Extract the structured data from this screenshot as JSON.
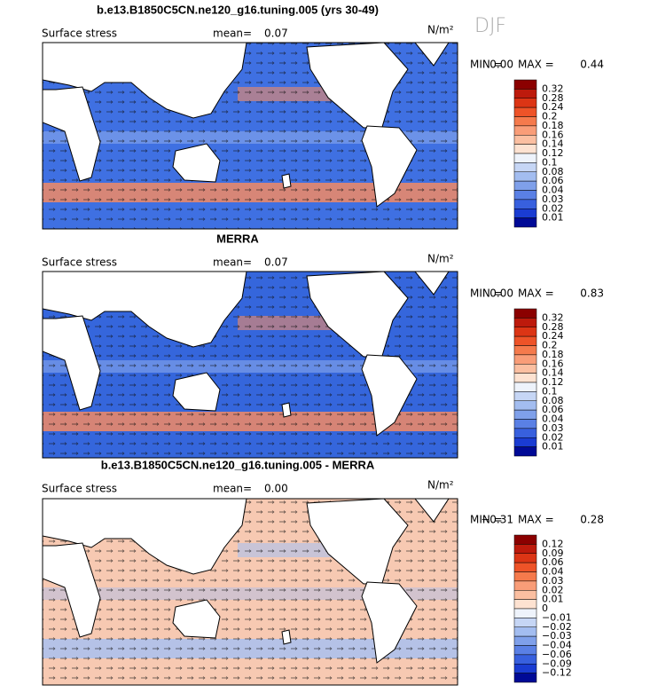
{
  "figure": {
    "season": "DJF",
    "panels": [
      {
        "title": "b.e13.B1850C5CN.ne120_g16.tuning.005 (yrs 30-49)",
        "variable": "Surface stress",
        "mean_label": "mean=",
        "mean": "0.07",
        "units": "N/m²",
        "min_label": "MIN =",
        "min": "0.00",
        "max_label": "MAX =",
        "max": "0.44",
        "levels": [
          "0.32",
          "0.28",
          "0.24",
          "0.2",
          "0.18",
          "0.16",
          "0.14",
          "0.12",
          "0.1",
          "0.08",
          "0.06",
          "0.04",
          "0.03",
          "0.02",
          "0.01"
        ],
        "colors": [
          "#8b0000",
          "#bd1a0c",
          "#dc3515",
          "#ee5328",
          "#f57a4c",
          "#f99d78",
          "#fbbfa1",
          "#fde2d1",
          "#eef3fb",
          "#c6d6f5",
          "#a3bdf0",
          "#7fa0ea",
          "#5a80e5",
          "#3860de",
          "#1a3cd2",
          "#000a96"
        ],
        "base": "#3f70e2",
        "band": "#f28a64"
      },
      {
        "title": "MERRA",
        "variable": "Surface stress",
        "mean_label": "mean=",
        "mean": "0.07",
        "units": "N/m²",
        "min_label": "MIN =",
        "min": "0.00",
        "max_label": "MAX =",
        "max": "0.83",
        "levels": [
          "0.32",
          "0.28",
          "0.24",
          "0.2",
          "0.18",
          "0.16",
          "0.14",
          "0.12",
          "0.1",
          "0.08",
          "0.06",
          "0.04",
          "0.03",
          "0.02",
          "0.01"
        ],
        "colors": [
          "#8b0000",
          "#bd1a0c",
          "#dc3515",
          "#ee5328",
          "#f57a4c",
          "#f99d78",
          "#fbbfa1",
          "#fde2d1",
          "#eef3fb",
          "#c6d6f5",
          "#a3bdf0",
          "#7fa0ea",
          "#5a80e5",
          "#3860de",
          "#1a3cd2",
          "#000a96"
        ],
        "base": "#3566dc",
        "band": "#f28a64"
      },
      {
        "title": "b.e13.B1850C5CN.ne120_g16.tuning.005 - MERRA",
        "variable": "Surface stress",
        "mean_label": "mean=",
        "mean": "0.00",
        "units": "N/m²",
        "min_label": "MIN =",
        "min": "−0.31",
        "max_label": "MAX =",
        "max": "0.28",
        "levels": [
          "0.12",
          "0.09",
          "0.06",
          "0.04",
          "0.03",
          "0.02",
          "0.01",
          "0",
          "−0.01",
          "−0.02",
          "−0.03",
          "−0.04",
          "−0.06",
          "−0.09",
          "−0.12"
        ],
        "colors": [
          "#8b0000",
          "#bd1a0c",
          "#dc3515",
          "#ee5328",
          "#f57a4c",
          "#f99d78",
          "#fbbfa1",
          "#fde2d1",
          "#eef3fb",
          "#c6d6f5",
          "#a3bdf0",
          "#7fa0ea",
          "#5a80e5",
          "#3860de",
          "#1a3cd2",
          "#000a96"
        ],
        "base": "#f7c9b2",
        "band": "#a9c1f0"
      }
    ]
  }
}
